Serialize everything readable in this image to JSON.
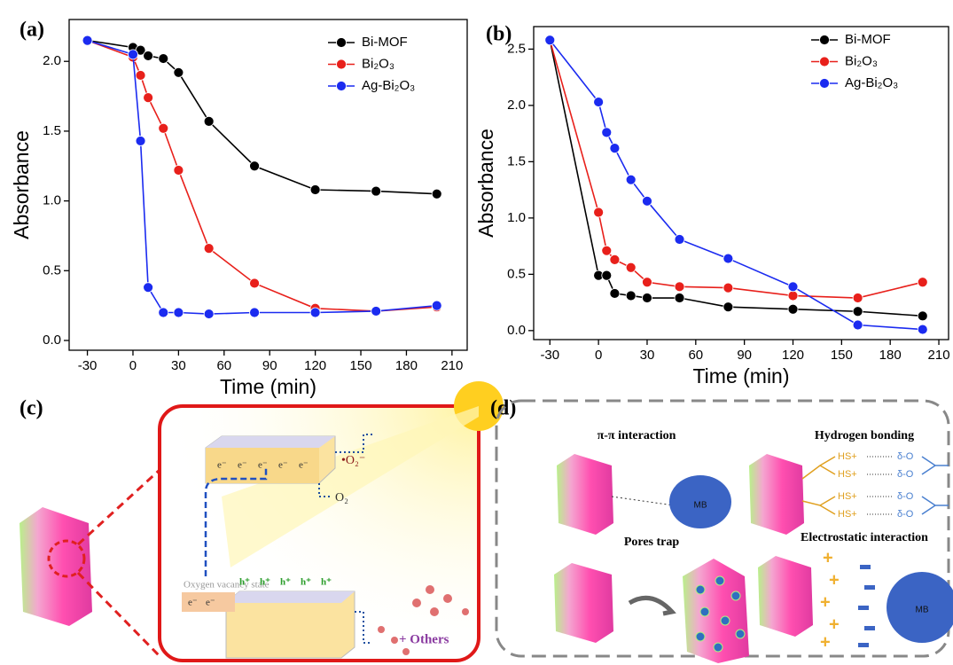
{
  "chart_data": [
    {
      "type": "line",
      "title": "(a)",
      "x_label": "Time (min)",
      "y_label": "Absorbance",
      "x": [
        -30,
        0,
        5,
        10,
        20,
        30,
        50,
        80,
        120,
        160,
        200
      ],
      "series": [
        {
          "name": "Bi-MOF",
          "color": "#000000",
          "values": [
            2.15,
            2.1,
            2.08,
            2.04,
            2.02,
            1.92,
            1.57,
            1.25,
            1.08,
            1.07,
            1.05
          ]
        },
        {
          "name": "Bi₂O₃",
          "color": "#e8201b",
          "values": [
            2.15,
            2.03,
            1.9,
            1.74,
            1.52,
            1.22,
            0.66,
            0.41,
            0.23,
            0.21,
            0.24
          ]
        },
        {
          "name": "Ag-Bi₂O₃",
          "color": "#1b2bf0",
          "values": [
            2.15,
            2.05,
            1.43,
            0.38,
            0.2,
            0.2,
            0.19,
            0.2,
            0.2,
            0.21,
            0.25
          ]
        }
      ],
      "xlim": [
        -42,
        220
      ],
      "xticks": [
        -30,
        0,
        30,
        60,
        90,
        120,
        150,
        180,
        210
      ],
      "ylim": [
        -0.07,
        2.3
      ],
      "yticks": [
        {
          "value": 0,
          "label": "0.0"
        },
        {
          "value": 0.5,
          "label": "0.5"
        },
        {
          "value": 1,
          "label": "1.0"
        },
        {
          "value": 1.5,
          "label": "1.5"
        },
        {
          "value": 2,
          "label": "2.0"
        }
      ],
      "legend": "upper right"
    },
    {
      "type": "line",
      "title": "(b)",
      "x_label": "Time (min)",
      "y_label": "Absorbance",
      "x": [
        -30,
        0,
        5,
        10,
        20,
        30,
        50,
        80,
        120,
        160,
        200
      ],
      "series": [
        {
          "name": "Bi-MOF",
          "color": "#000000",
          "values": [
            2.58,
            0.49,
            0.49,
            0.33,
            0.31,
            0.29,
            0.29,
            0.21,
            0.19,
            0.17,
            0.13
          ]
        },
        {
          "name": "Bi₂O₃",
          "color": "#e8201b",
          "values": [
            2.58,
            1.05,
            0.71,
            0.63,
            0.56,
            0.43,
            0.39,
            0.38,
            0.31,
            0.29,
            0.43
          ]
        },
        {
          "name": "Ag-Bi₂O₃",
          "color": "#1b2bf0",
          "values": [
            2.58,
            2.03,
            1.76,
            1.62,
            1.34,
            1.15,
            0.81,
            0.64,
            0.39,
            0.05,
            0.01
          ]
        }
      ],
      "xlim": [
        -40,
        216
      ],
      "xticks": [
        -30,
        0,
        30,
        60,
        90,
        120,
        150,
        180,
        210
      ],
      "ylim": [
        -0.08,
        2.7
      ],
      "yticks": [
        {
          "value": 0,
          "label": "0.0"
        },
        {
          "value": 0.5,
          "label": "0.5"
        },
        {
          "value": 1,
          "label": "1.0"
        },
        {
          "value": 1.5,
          "label": "1.5"
        },
        {
          "value": 2,
          "label": "2.0"
        },
        {
          "value": 2.5,
          "label": "2.5"
        }
      ],
      "legend": "upper right"
    }
  ],
  "panel_c": {
    "label": "(c)",
    "superoxide": "•O₂⁻",
    "oxygen": "O₂",
    "vacancy": "Oxygen vacancy state",
    "others": "+ Others",
    "electron": "e⁻",
    "hole": "h⁺"
  },
  "panel_d": {
    "label": "(d)",
    "pi": "π-π interaction",
    "hbond": "Hydrogen bonding",
    "pores": "Pores trap",
    "electrostatic": "Electrostatic interaction",
    "mb": "MB",
    "donor": "HS+",
    "acceptor": "δ-O"
  }
}
